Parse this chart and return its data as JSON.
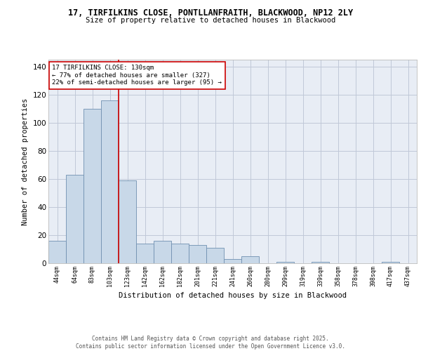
{
  "title_line1": "17, TIRFILKINS CLOSE, PONTLLANFRAITH, BLACKWOOD, NP12 2LY",
  "title_line2": "Size of property relative to detached houses in Blackwood",
  "xlabel": "Distribution of detached houses by size in Blackwood",
  "ylabel": "Number of detached properties",
  "categories": [
    "44sqm",
    "64sqm",
    "83sqm",
    "103sqm",
    "123sqm",
    "142sqm",
    "162sqm",
    "182sqm",
    "201sqm",
    "221sqm",
    "241sqm",
    "260sqm",
    "280sqm",
    "299sqm",
    "319sqm",
    "339sqm",
    "358sqm",
    "378sqm",
    "398sqm",
    "417sqm",
    "437sqm"
  ],
  "values": [
    16,
    63,
    110,
    116,
    59,
    14,
    16,
    14,
    13,
    11,
    3,
    5,
    0,
    1,
    0,
    1,
    0,
    0,
    0,
    1,
    0
  ],
  "bar_color": "#c8d8e8",
  "bar_edge_color": "#7090b0",
  "grid_color": "#c0c8d8",
  "background_color": "#e8edf5",
  "annotation_text": "17 TIRFILKINS CLOSE: 130sqm\n← 77% of detached houses are smaller (327)\n22% of semi-detached houses are larger (95) →",
  "annotation_box_color": "#ffffff",
  "annotation_box_edge_color": "#cc0000",
  "property_line_color": "#cc0000",
  "ylim": [
    0,
    145
  ],
  "yticks": [
    0,
    20,
    40,
    60,
    80,
    100,
    120,
    140
  ],
  "footer_line1": "Contains HM Land Registry data © Crown copyright and database right 2025.",
  "footer_line2": "Contains public sector information licensed under the Open Government Licence v3.0."
}
